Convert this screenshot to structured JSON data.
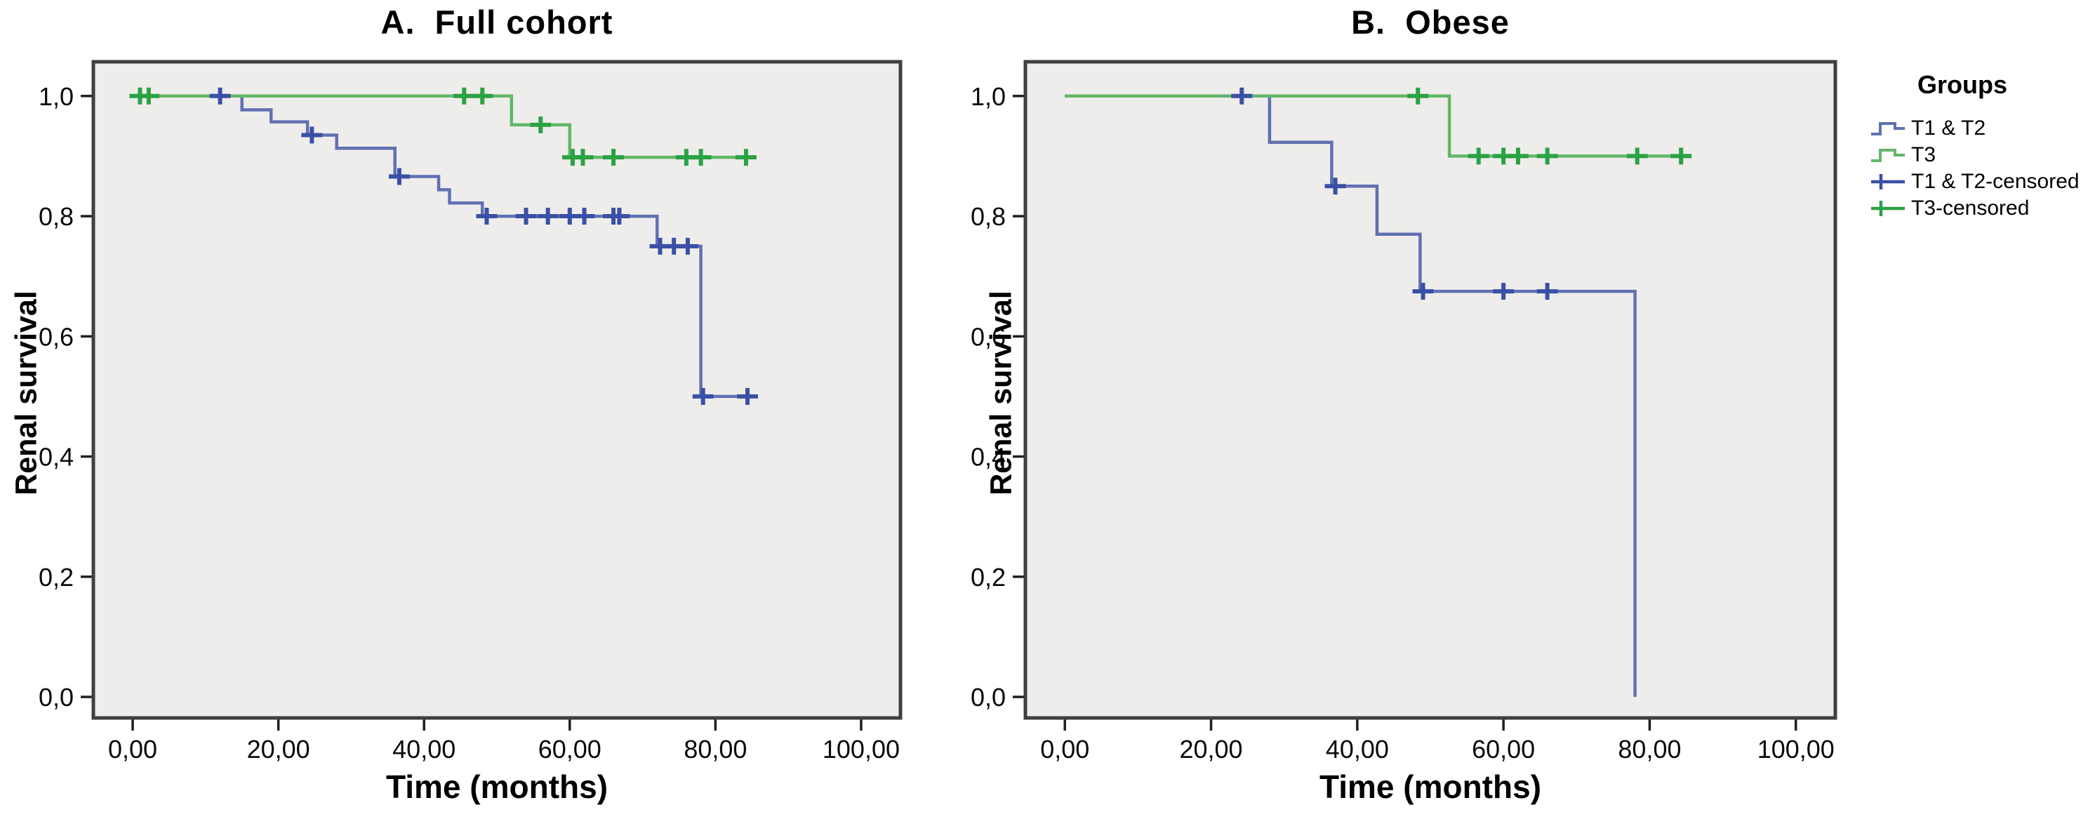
{
  "figure": {
    "plot_bg": "#eeedeb",
    "border_color": "#3f3f3f",
    "tick_color": "#1f1f1f",
    "tick_label_color": "#0a0a0a",
    "blue_line": "#6070b2",
    "blue_censor": "#3a50a6",
    "green_line": "#62b768",
    "green_censor": "#2aa244"
  },
  "legend": {
    "title": "Groups",
    "items": [
      {
        "label": "T1 & T2",
        "color": "#6070b2",
        "type": "step-line"
      },
      {
        "label": "T3",
        "color": "#62b768",
        "type": "step-line"
      },
      {
        "label": "T1 & T2-censored",
        "color": "#3a50a6",
        "type": "censor-plus"
      },
      {
        "label": "T3-censored",
        "color": "#2aa244",
        "type": "censor-plus"
      }
    ]
  },
  "chart_data": [
    {
      "type": "line",
      "subtype": "kaplan-meier-step",
      "title": "A.  Full cohort",
      "xlabel": "Time (months)",
      "ylabel": "Renal survival",
      "xlim": [
        -5.4,
        105.4
      ],
      "ylim": [
        -0.035,
        1.057
      ],
      "grid": false,
      "legend_position": "right-of-figure",
      "xticks": [
        {
          "v": 0,
          "label": "0,00"
        },
        {
          "v": 20,
          "label": "20,00"
        },
        {
          "v": 40,
          "label": "40,00"
        },
        {
          "v": 60,
          "label": "60,00"
        },
        {
          "v": 80,
          "label": "80,00"
        },
        {
          "v": 100,
          "label": "100,00"
        }
      ],
      "yticks": [
        {
          "v": 1.0,
          "label": "1,0"
        },
        {
          "v": 0.8,
          "label": "0,8"
        },
        {
          "v": 0.6,
          "label": "0,6"
        },
        {
          "v": 0.4,
          "label": "0,4"
        },
        {
          "v": 0.2,
          "label": "0,2"
        },
        {
          "v": 0.0,
          "label": "0,0"
        }
      ],
      "series": [
        {
          "name": "T1 & T2",
          "color": "#6070b2",
          "censor_color": "#3a50a6",
          "start": [
            0,
            1.0
          ],
          "steps": [
            [
              15,
              0.977
            ],
            [
              19,
              0.957
            ],
            [
              24,
              0.935
            ],
            [
              28,
              0.913
            ],
            [
              36,
              0.866
            ],
            [
              42,
              0.844
            ],
            [
              43.5,
              0.822
            ],
            [
              48,
              0.8
            ],
            [
              72,
              0.75
            ],
            [
              78,
              0.5
            ]
          ],
          "end": 85.5,
          "censors": [
            [
              12,
              1.0
            ],
            [
              24.6,
              0.935
            ],
            [
              36.6,
              0.866
            ],
            [
              48.6,
              0.8
            ],
            [
              54,
              0.8
            ],
            [
              57,
              0.8
            ],
            [
              60,
              0.8
            ],
            [
              62,
              0.8
            ],
            [
              66,
              0.8
            ],
            [
              66.8,
              0.8
            ],
            [
              72.4,
              0.75
            ],
            [
              74.3,
              0.75
            ],
            [
              76.2,
              0.75
            ],
            [
              78.3,
              0.5
            ],
            [
              84.4,
              0.5
            ]
          ]
        },
        {
          "name": "T3",
          "color": "#62b768",
          "censor_color": "#2aa244",
          "start": [
            0,
            1.0
          ],
          "steps": [
            [
              52,
              0.952
            ],
            [
              60,
              0.898
            ]
          ],
          "end": 85.5,
          "censors": [
            [
              1,
              1.0
            ],
            [
              2.2,
              1.0
            ],
            [
              45.5,
              1.0
            ],
            [
              48,
              1.0
            ],
            [
              56,
              0.952
            ],
            [
              60.4,
              0.898
            ],
            [
              61.8,
              0.898
            ],
            [
              66,
              0.898
            ],
            [
              76,
              0.898
            ],
            [
              78,
              0.898
            ],
            [
              84.2,
              0.898
            ]
          ]
        }
      ]
    },
    {
      "type": "line",
      "subtype": "kaplan-meier-step",
      "title": "B.  Obese",
      "xlabel": "Time (months)",
      "ylabel": "Renal survival",
      "xlim": [
        -5.4,
        105.4
      ],
      "ylim": [
        -0.035,
        1.057
      ],
      "grid": false,
      "legend_position": "right-of-figure",
      "xticks": [
        {
          "v": 0,
          "label": "0,00"
        },
        {
          "v": 20,
          "label": "20,00"
        },
        {
          "v": 40,
          "label": "40,00"
        },
        {
          "v": 60,
          "label": "60,00"
        },
        {
          "v": 80,
          "label": "80,00"
        },
        {
          "v": 100,
          "label": "100,00"
        }
      ],
      "yticks": [
        {
          "v": 1.0,
          "label": "1,0"
        },
        {
          "v": 0.8,
          "label": "0,8"
        },
        {
          "v": 0.6,
          "label": "0,6"
        },
        {
          "v": 0.4,
          "label": "0,4"
        },
        {
          "v": 0.2,
          "label": "0,2"
        },
        {
          "v": 0.0,
          "label": "0,0"
        }
      ],
      "series": [
        {
          "name": "T1 & T2",
          "color": "#6070b2",
          "censor_color": "#3a50a6",
          "start": [
            0,
            1.0
          ],
          "steps": [
            [
              28,
              0.923
            ],
            [
              36.5,
              0.85
            ],
            [
              42.7,
              0.77
            ],
            [
              48.6,
              0.675
            ],
            [
              78,
              0.0
            ]
          ],
          "end": 78,
          "censors": [
            [
              24.2,
              1.0
            ],
            [
              37,
              0.85
            ],
            [
              49,
              0.675
            ],
            [
              60,
              0.675
            ],
            [
              66,
              0.675
            ]
          ]
        },
        {
          "name": "T3",
          "color": "#62b768",
          "censor_color": "#2aa244",
          "start": [
            0,
            1.0
          ],
          "steps": [
            [
              52.6,
              0.9
            ]
          ],
          "end": 85,
          "censors": [
            [
              48.3,
              1.0
            ],
            [
              56.6,
              0.9
            ],
            [
              60,
              0.9
            ],
            [
              62,
              0.9
            ],
            [
              66,
              0.9
            ],
            [
              78.3,
              0.9
            ],
            [
              84.3,
              0.9
            ]
          ]
        }
      ]
    }
  ]
}
